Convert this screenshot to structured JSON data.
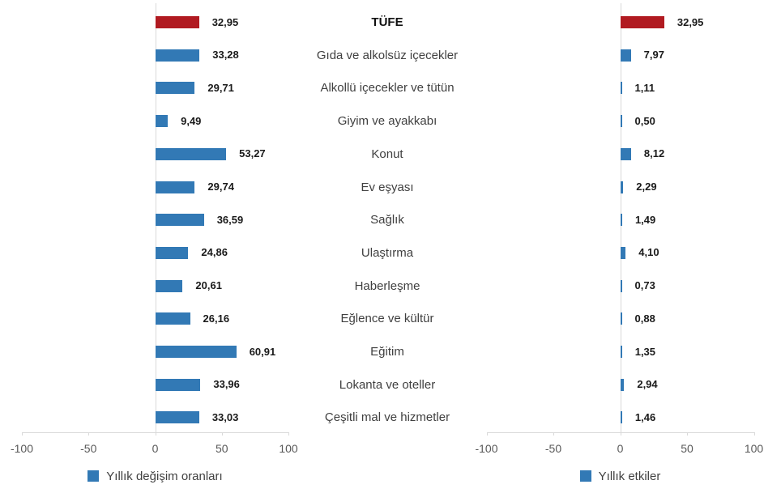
{
  "chart_data": {
    "type": "bar",
    "orientation": "horizontal",
    "title": "",
    "categories": [
      "TÜFE",
      "Gıda ve alkolsüz içecekler",
      "Alkollü içecekler ve tütün",
      "Giyim ve ayakkabı",
      "Konut",
      "Ev eşyası",
      "Sağlık",
      "Ulaştırma",
      "Haberleşme",
      "Eğlence ve kültür",
      "Eğitim",
      "Lokanta ve oteller",
      "Çeşitli mal ve hizmetler"
    ],
    "series": [
      {
        "name": "Yıllık değişim oranları",
        "values": [
          32.95,
          33.28,
          29.71,
          9.49,
          53.27,
          29.74,
          36.59,
          24.86,
          20.61,
          26.16,
          60.91,
          33.96,
          33.03
        ],
        "value_labels": [
          "32,95",
          "33,28",
          "29,71",
          "9,49",
          "53,27",
          "29,74",
          "36,59",
          "24,86",
          "20,61",
          "26,16",
          "60,91",
          "33,96",
          "33,03"
        ]
      },
      {
        "name": "Yıllık etkiler",
        "values": [
          32.95,
          7.97,
          1.11,
          0.5,
          8.12,
          2.29,
          1.49,
          4.1,
          0.73,
          0.88,
          1.35,
          2.94,
          1.46
        ],
        "value_labels": [
          "32,95",
          "7,97",
          "1,11",
          "0,50",
          "8,12",
          "2,29",
          "1,49",
          "4,10",
          "0,73",
          "0,88",
          "1,35",
          "2,94",
          "1,46"
        ]
      }
    ],
    "xlim": [
      -100,
      100
    ],
    "ticks": [
      -100,
      -50,
      0,
      50,
      100
    ],
    "tick_labels": [
      "-100",
      "-50",
      "0",
      "50",
      "100"
    ],
    "highlight_index": 0,
    "grid": "zero-line-only",
    "legend_position": "bottom",
    "colors": {
      "bar": "#3279b5",
      "highlight_bar": "#b11a21",
      "axis": "#d9d9d9",
      "tick_text": "#595959",
      "category_text": "#404040",
      "value_text": "#1a1a1a"
    }
  }
}
